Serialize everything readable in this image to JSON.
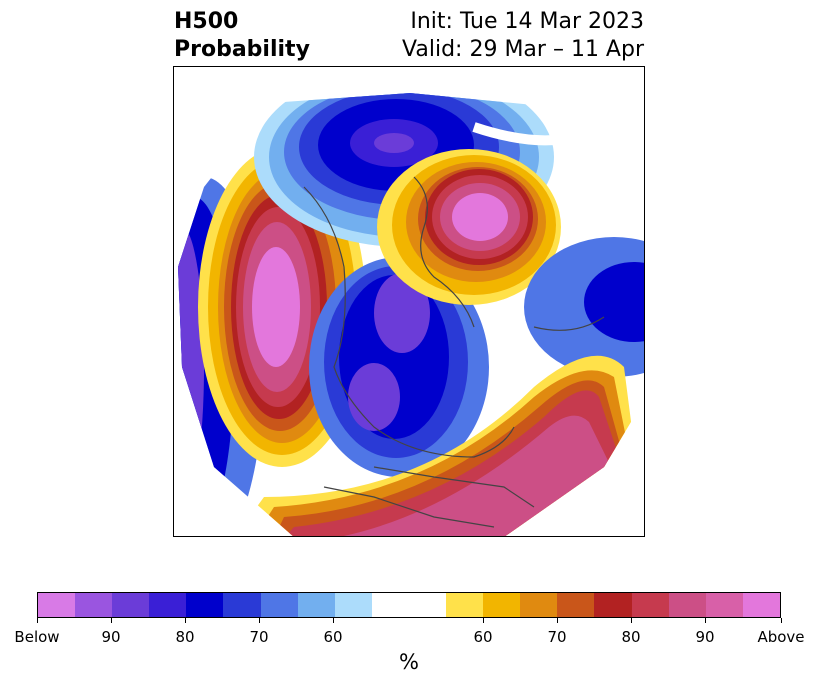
{
  "header": {
    "title_line1": "H500",
    "title_line2": "Probability",
    "init_text": "Init: Tue 14 Mar 2023",
    "valid_text": "Valid: 29 Mar – 11 Apr"
  },
  "colorbar": {
    "units_label": "%",
    "colors": [
      "#d87ae6",
      "#9a55e0",
      "#6b3cd8",
      "#3a1fd6",
      "#0000cc",
      "#2a3ad6",
      "#4f76e6",
      "#72afef",
      "#acdcfb",
      "#ffffff",
      "#ffffff",
      "#ffe14a",
      "#f2b500",
      "#e08a10",
      "#c9561a",
      "#b22222",
      "#c63a4e",
      "#cc4f86",
      "#d860a8",
      "#e377dc"
    ],
    "tick_labels": [
      "Below",
      "90",
      "80",
      "70",
      "60",
      "60",
      "70",
      "80",
      "90",
      "Above"
    ]
  }
}
